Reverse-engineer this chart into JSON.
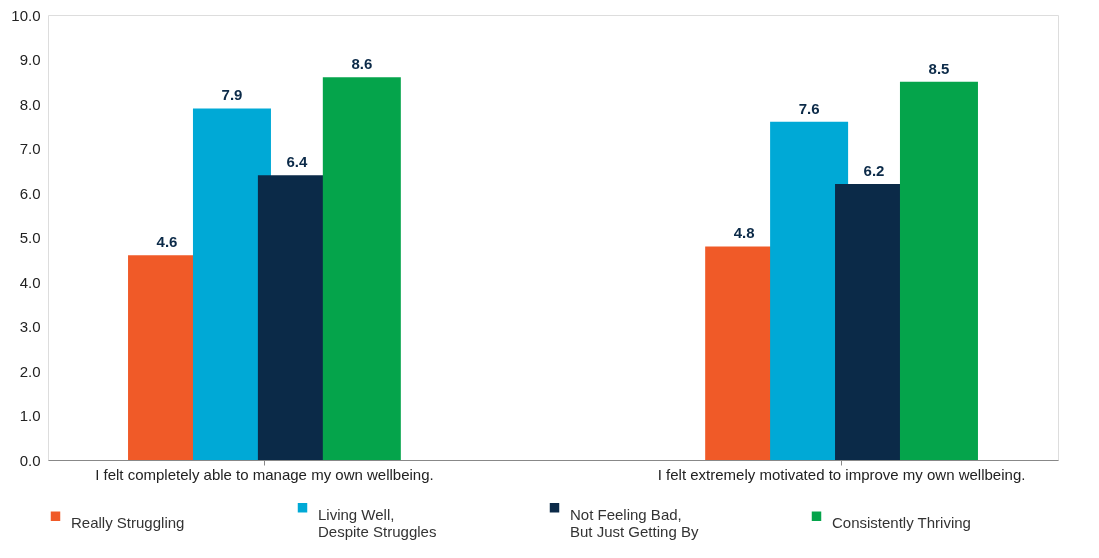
{
  "chart_data": {
    "type": "bar",
    "categories": [
      "I felt completely able to manage my own wellbeing.",
      "I felt extremely motivated to improve my own wellbeing."
    ],
    "series": [
      {
        "name": "Really Struggling",
        "color": "#f05a28",
        "values": [
          4.6,
          4.8
        ]
      },
      {
        "name": "Living Well,\nDespite Struggles",
        "color": "#00a9d6",
        "values": [
          7.9,
          7.6
        ]
      },
      {
        "name": "Not Feeling Bad,\nBut Just Getting By",
        "color": "#0b2a48",
        "values": [
          6.4,
          6.2
        ]
      },
      {
        "name": "Consistently Thriving",
        "color": "#05a44b",
        "values": [
          8.6,
          8.5
        ]
      }
    ],
    "ylim": [
      0,
      10
    ],
    "yticks": [
      {
        "value": 0,
        "label": "0.0"
      },
      {
        "value": 1,
        "label": "1.0"
      },
      {
        "value": 2,
        "label": "2.0"
      },
      {
        "value": 3,
        "label": "3.0"
      },
      {
        "value": 4,
        "label": "4.0"
      },
      {
        "value": 5,
        "label": "5.0"
      },
      {
        "value": 6,
        "label": "6.0"
      },
      {
        "value": 7,
        "label": "7.0"
      },
      {
        "value": 8,
        "label": "8.0"
      },
      {
        "value": 9,
        "label": "9.0"
      },
      {
        "value": 10,
        "label": "10.0"
      }
    ],
    "data_labels": true,
    "grid": false,
    "legend": "bottom"
  }
}
